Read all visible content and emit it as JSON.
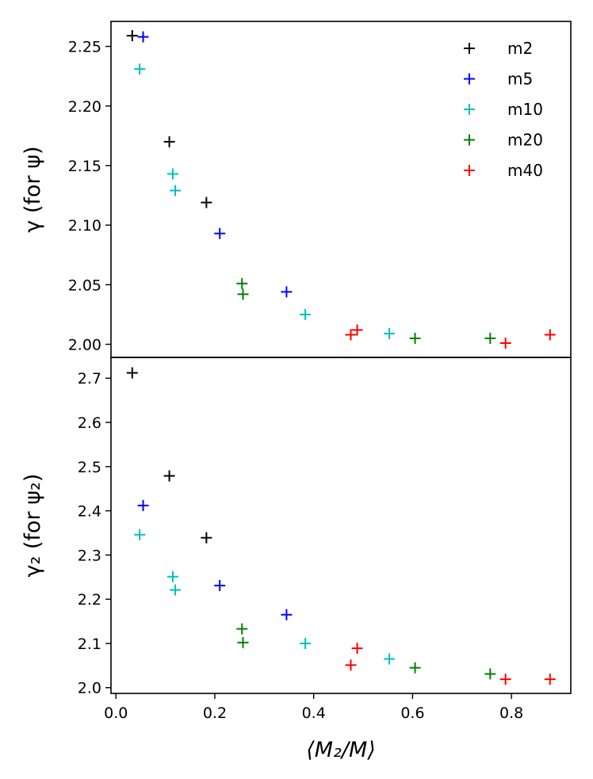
{
  "chart_data": {
    "type": "scatter",
    "marker": "+",
    "xlabel": "⟨M₂/M⟩",
    "xlim": [
      -0.01,
      0.92
    ],
    "xticks": [
      0.0,
      0.2,
      0.4,
      0.6,
      0.8
    ],
    "xtick_labels": [
      "0.0",
      "0.2",
      "0.4",
      "0.6",
      "0.8"
    ],
    "legend": {
      "placement": "top-right",
      "entries": [
        {
          "name": "m2",
          "color": "#000000"
        },
        {
          "name": "m5",
          "color": "#0000ff"
        },
        {
          "name": "m10",
          "color": "#00bfbf"
        },
        {
          "name": "m20",
          "color": "#008000"
        },
        {
          "name": "m40",
          "color": "#ff0000"
        }
      ]
    },
    "panels": [
      {
        "id": "top",
        "ylabel": "γ (for ψ)",
        "ylim": [
          1.989,
          2.271
        ],
        "yticks": [
          2.0,
          2.05,
          2.1,
          2.15,
          2.2,
          2.25
        ],
        "ytick_labels": [
          "2.00",
          "2.05",
          "2.10",
          "2.15",
          "2.20",
          "2.25"
        ],
        "series": [
          {
            "name": "m2",
            "color": "#000000",
            "points": [
              [
                0.033,
                2.259
              ],
              [
                0.108,
                2.17
              ],
              [
                0.183,
                2.119
              ]
            ]
          },
          {
            "name": "m5",
            "color": "#0000ff",
            "points": [
              [
                0.055,
                2.258
              ],
              [
                0.21,
                2.093
              ],
              [
                0.345,
                2.044
              ]
            ]
          },
          {
            "name": "m10",
            "color": "#00bfbf",
            "points": [
              [
                0.048,
                2.231
              ],
              [
                0.115,
                2.143
              ],
              [
                0.12,
                2.129
              ],
              [
                0.383,
                2.025
              ],
              [
                0.553,
                2.009
              ]
            ]
          },
          {
            "name": "m20",
            "color": "#008000",
            "points": [
              [
                0.255,
                2.051
              ],
              [
                0.257,
                2.042
              ],
              [
                0.605,
                2.005
              ],
              [
                0.757,
                2.005
              ]
            ]
          },
          {
            "name": "m40",
            "color": "#ff0000",
            "points": [
              [
                0.475,
                2.008
              ],
              [
                0.488,
                2.012
              ],
              [
                0.788,
                2.001
              ],
              [
                0.878,
                2.008
              ]
            ]
          }
        ]
      },
      {
        "id": "bottom",
        "ylabel": "γ₂ (for ψ₂)",
        "ylim": [
          1.987,
          2.747
        ],
        "yticks": [
          2.0,
          2.1,
          2.2,
          2.3,
          2.4,
          2.5,
          2.6,
          2.7
        ],
        "ytick_labels": [
          "2.0",
          "2.1",
          "2.2",
          "2.3",
          "2.4",
          "2.5",
          "2.6",
          "2.7"
        ],
        "series": [
          {
            "name": "m2",
            "color": "#000000",
            "points": [
              [
                0.033,
                2.712
              ],
              [
                0.108,
                2.479
              ],
              [
                0.183,
                2.339
              ]
            ]
          },
          {
            "name": "m5",
            "color": "#0000ff",
            "points": [
              [
                0.055,
                2.412
              ],
              [
                0.21,
                2.231
              ],
              [
                0.345,
                2.165
              ]
            ]
          },
          {
            "name": "m10",
            "color": "#00bfbf",
            "points": [
              [
                0.048,
                2.346
              ],
              [
                0.115,
                2.251
              ],
              [
                0.12,
                2.221
              ],
              [
                0.383,
                2.1
              ],
              [
                0.553,
                2.065
              ]
            ]
          },
          {
            "name": "m20",
            "color": "#008000",
            "points": [
              [
                0.255,
                2.133
              ],
              [
                0.257,
                2.102
              ],
              [
                0.605,
                2.045
              ],
              [
                0.757,
                2.031
              ]
            ]
          },
          {
            "name": "m40",
            "color": "#ff0000",
            "points": [
              [
                0.475,
                2.051
              ],
              [
                0.488,
                2.089
              ],
              [
                0.788,
                2.019
              ],
              [
                0.878,
                2.019
              ]
            ]
          }
        ]
      }
    ]
  }
}
